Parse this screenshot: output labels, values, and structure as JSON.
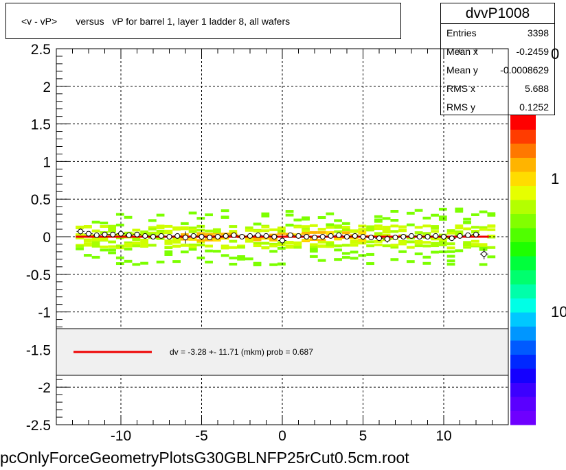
{
  "title": "<v - vP>       versus   vP for barrel 1, layer 1 ladder 8, all wafers",
  "stats": {
    "name": "dvvP1008",
    "rows": [
      {
        "label": "Entries",
        "value": "3398"
      },
      {
        "label": "Mean x",
        "value": "-0.2459"
      },
      {
        "label": "Mean y",
        "value": "-0.0008629"
      },
      {
        "label": "RMS x",
        "value": "5.688"
      },
      {
        "label": "RMS y",
        "value": "0.1252"
      }
    ]
  },
  "footer": "pcOnlyForceGeometryPlotsG30GBLNFP25rCut0.5cm.root",
  "legend": {
    "text": "dv =   -3.28 +- 11.71 (mkm) prob = 0.687",
    "fit_color": "#ee0000"
  },
  "palette_labels": [
    {
      "text": "10",
      "value": 10
    },
    {
      "text": "1",
      "value": 1
    },
    {
      "text": "0",
      "value": 0
    }
  ],
  "chart_data": {
    "type": "scatter",
    "title": "<v - vP>       versus   vP for barrel 1, layer 1 ladder 8, all wafers",
    "xlabel": "",
    "ylabel": "",
    "xlim": [
      -14,
      14
    ],
    "ylim": [
      -2.5,
      2.5
    ],
    "x_ticks": [
      -10,
      -5,
      0,
      5,
      10
    ],
    "y_ticks": [
      -2.5,
      -2,
      -1.5,
      -1,
      -0.5,
      0,
      0.5,
      1,
      1.5,
      2,
      2.5
    ],
    "grid": true,
    "fit": {
      "y": -3.28e-06,
      "x_range": [
        -12.8,
        12.8
      ],
      "color": "#ee0000"
    },
    "profile": {
      "x": [
        -12.5,
        -12.0,
        -11.5,
        -11.0,
        -10.5,
        -10.0,
        -9.5,
        -9.0,
        -8.5,
        -8.0,
        -7.5,
        -7.0,
        -6.5,
        -6.0,
        -5.5,
        -5.0,
        -4.5,
        -4.0,
        -3.5,
        -3.0,
        -2.5,
        -2.0,
        -1.5,
        -1.0,
        -0.5,
        0.0,
        0.5,
        1.0,
        1.5,
        2.0,
        2.5,
        3.0,
        3.5,
        4.0,
        4.5,
        5.0,
        5.5,
        6.0,
        6.5,
        7.0,
        7.5,
        8.0,
        8.5,
        9.0,
        9.5,
        10.0,
        10.5,
        11.0,
        11.5,
        12.0,
        12.5
      ],
      "y": [
        0.07,
        0.04,
        0.02,
        0.03,
        0.03,
        0.04,
        0.02,
        0.03,
        0.01,
        0.0,
        0.01,
        0.0,
        0.01,
        -0.01,
        0.01,
        0.0,
        -0.01,
        0.0,
        0.01,
        0.02,
        0.0,
        0.01,
        0.02,
        0.01,
        0.0,
        -0.05,
        0.02,
        0.01,
        0.0,
        -0.01,
        0.0,
        0.01,
        0.02,
        0.0,
        0.01,
        0.0,
        -0.01,
        -0.02,
        -0.03,
        -0.01,
        0.0,
        0.01,
        0.0,
        0.0,
        0.01,
        0.0,
        -0.02,
        0.01,
        0.02,
        0.03,
        -0.23
      ],
      "yerr": [
        0.04,
        0.03,
        0.02,
        0.02,
        0.02,
        0.02,
        0.02,
        0.02,
        0.02,
        0.02,
        0.02,
        0.02,
        0.02,
        0.08,
        0.02,
        0.02,
        0.02,
        0.02,
        0.02,
        0.02,
        0.02,
        0.02,
        0.02,
        0.02,
        0.02,
        0.06,
        0.02,
        0.02,
        0.02,
        0.02,
        0.02,
        0.02,
        0.02,
        0.02,
        0.02,
        0.02,
        0.02,
        0.02,
        0.05,
        0.02,
        0.02,
        0.02,
        0.02,
        0.02,
        0.02,
        0.02,
        0.02,
        0.02,
        0.02,
        0.03,
        0.07
      ]
    },
    "palette_colors": [
      "#6e00ff",
      "#5a00ff",
      "#3c00ff",
      "#1400ff",
      "#0028ff",
      "#005aff",
      "#0096ff",
      "#00c8ff",
      "#00ffe6",
      "#00ffaa",
      "#00ff6e",
      "#00ff3c",
      "#1eff00",
      "#50ff00",
      "#82ff00",
      "#b4ff00",
      "#e6ff00",
      "#ffdc00",
      "#ffb400",
      "#ff7800",
      "#ff3c00",
      "#ff0000"
    ]
  }
}
